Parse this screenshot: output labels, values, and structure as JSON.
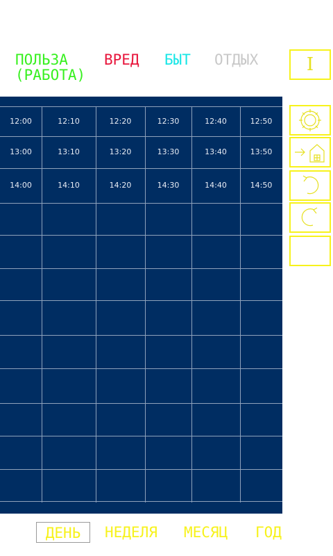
{
  "categories": {
    "benefit": {
      "label": "ПОЛЬЗА\n(РАБОТА)",
      "color": "#38f020"
    },
    "harm": {
      "label": "ВРЕД",
      "color": "#e8163c"
    },
    "home": {
      "label": "БЫТ",
      "color": "#18e6e6"
    },
    "rest": {
      "label": "ОТДЫХ",
      "color": "#c8c8c8"
    }
  },
  "top_button": {
    "label": "I"
  },
  "schedule": {
    "rows": [
      [
        "12:00",
        "12:10",
        "12:20",
        "12:30",
        "12:40",
        "12:50"
      ],
      [
        "13:00",
        "13:10",
        "13:20",
        "13:30",
        "13:40",
        "13:50"
      ],
      [
        "14:00",
        "14:10",
        "14:20",
        "14:30",
        "14:40",
        "14:50"
      ],
      [
        "",
        "",
        "",
        "",
        "",
        ""
      ],
      [
        "",
        "",
        "",
        "",
        "",
        ""
      ],
      [
        "",
        "",
        "",
        "",
        "",
        ""
      ],
      [
        "",
        "",
        "",
        "",
        "",
        ""
      ],
      [
        "",
        "",
        "",
        "",
        "",
        ""
      ],
      [
        "",
        "",
        "",
        "",
        "",
        ""
      ],
      [
        "",
        "",
        "",
        "",
        "",
        ""
      ],
      [
        "",
        "",
        "",
        "",
        "",
        ""
      ],
      [
        "",
        "",
        "",
        "",
        "",
        ""
      ]
    ]
  },
  "side_buttons": [
    {
      "icon": "gear-icon"
    },
    {
      "icon": "exit-home-icon"
    },
    {
      "icon": "undo-icon"
    },
    {
      "icon": "redo-icon"
    },
    {
      "icon": "empty"
    }
  ],
  "period_tabs": {
    "day": "ДЕНЬ",
    "week": "НЕДЕЛЯ",
    "month": "МЕСЯЦ",
    "year": "ГОД",
    "selected": "day"
  },
  "colors": {
    "grid_bg": "#002d62",
    "accent_yellow": "#f7f21c"
  }
}
